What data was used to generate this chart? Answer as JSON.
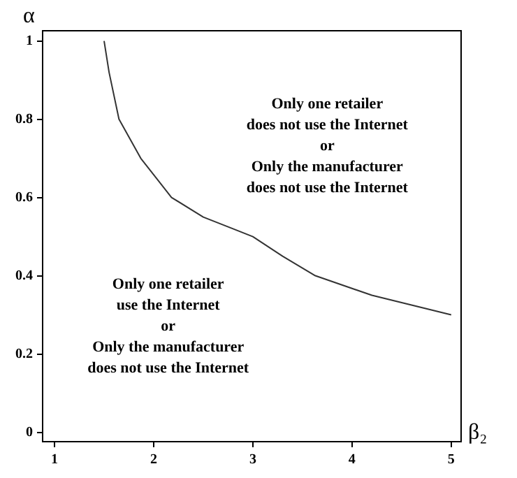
{
  "chart_data": {
    "type": "line",
    "xlabel": "β₂",
    "ylabel": "α",
    "x": [
      1.5,
      1.55,
      1.65,
      1.87,
      2.18,
      2.5,
      2.8,
      3.0,
      3.3,
      3.63,
      4.2,
      5.0
    ],
    "values": [
      1.0,
      0.92,
      0.8,
      0.7,
      0.6,
      0.55,
      0.52,
      0.5,
      0.45,
      0.4,
      0.35,
      0.3
    ],
    "color": "#333333",
    "xlim": [
      0.88,
      5.1
    ],
    "ylim": [
      -0.024,
      1.026
    ],
    "xticks": [
      1,
      2,
      3,
      4,
      5
    ],
    "yticks": [
      0,
      0.2,
      0.4,
      0.6,
      0.8,
      1
    ],
    "grid": false,
    "legend": false,
    "marker": "none",
    "line_style": "solid",
    "annotations": [
      "Only one retailer\ndoes not use the Internet\nor\nOnly the manufacturer\ndoes not use the Internet",
      "Only one retailer\nuse the Internet\nor\nOnly the manufacturer\ndoes not use the Internet"
    ]
  }
}
